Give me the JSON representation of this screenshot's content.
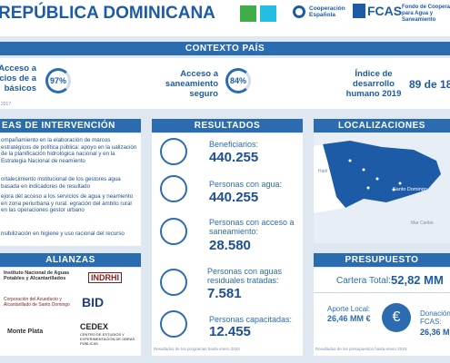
{
  "header": {
    "title": "REPÚBLICA DOMINICANA",
    "logo_cooperacion": "Cooperación Española",
    "logo_fcas": "FCAS",
    "logo_fcas_text": "Fondo de Cooperación para Agua y Saneamiento"
  },
  "context": {
    "title": "CONTEXTO PAÍS",
    "stats": [
      {
        "label": "Acceso a vicios de a básicos",
        "value": "97%"
      },
      {
        "label": "Acceso a saneamiento seguro",
        "value": "84%"
      },
      {
        "label": "Índice de desarrollo humano 2019",
        "value": "89 de 18"
      }
    ],
    "note": "2017"
  },
  "areas": {
    "title": "EAS DE INTERVENCIÓN",
    "items": [
      "ompañamiento en la elaboración de marcos estratégicos de política pública: apoyo en la ualización de la planificación hidrológica nacional y en la Estrategia Nacional de neamiento",
      "ortalecimiento institucional de los gestores agua basada en indicadores de resultado",
      "ejora del acceso a los servicios de agua y neamiento en zona periurbana y rural. egración del ámbito rural en las operaciones gestor urbano",
      "nsibilización en higiene y uso racional del recurso"
    ]
  },
  "results": {
    "title": "RESULTADOS",
    "items": [
      {
        "label": "Beneficiarios:",
        "value": "440.255"
      },
      {
        "label": "Personas con agua:",
        "value": "440.255"
      },
      {
        "label": "Personas con acceso a saneamiento:",
        "value": "28.580"
      },
      {
        "label": "Personas con aguas residuales tratadas:",
        "value": "7.581"
      },
      {
        "label": "Personas capacitadas:",
        "value": "12.455"
      }
    ],
    "note": "Resultados de los programas hasta enero 2023"
  },
  "locations": {
    "title": "LOCALIZACIONES",
    "places": [
      "Santo Domingo",
      "Haití",
      "Mar Caribe"
    ]
  },
  "alliances": {
    "title": "ALIANZAS",
    "partners": [
      "Instituto Nacional de Aguas Potables y Alcantarillados",
      "INDRHI",
      "Corporación del Acueducto y Alcantarillado de Santo Domingo",
      "BID",
      "Monte Plata",
      "CEDEX",
      "CENTRO DE ESTUDIOS Y EXPERIMENTACIÓN DE OBRAS PÚBLICAS"
    ]
  },
  "budget": {
    "title": "PRESUPUESTO",
    "total_label": "Cartera Total:",
    "total": "52,82 MM",
    "local_label": "Aporte Local:",
    "local": "26,46 MM €",
    "donation_label": "Donación FCAS:",
    "donation": "26,36 M",
    "note": "Resultados de los presupuestos hasta enero 2023"
  }
}
